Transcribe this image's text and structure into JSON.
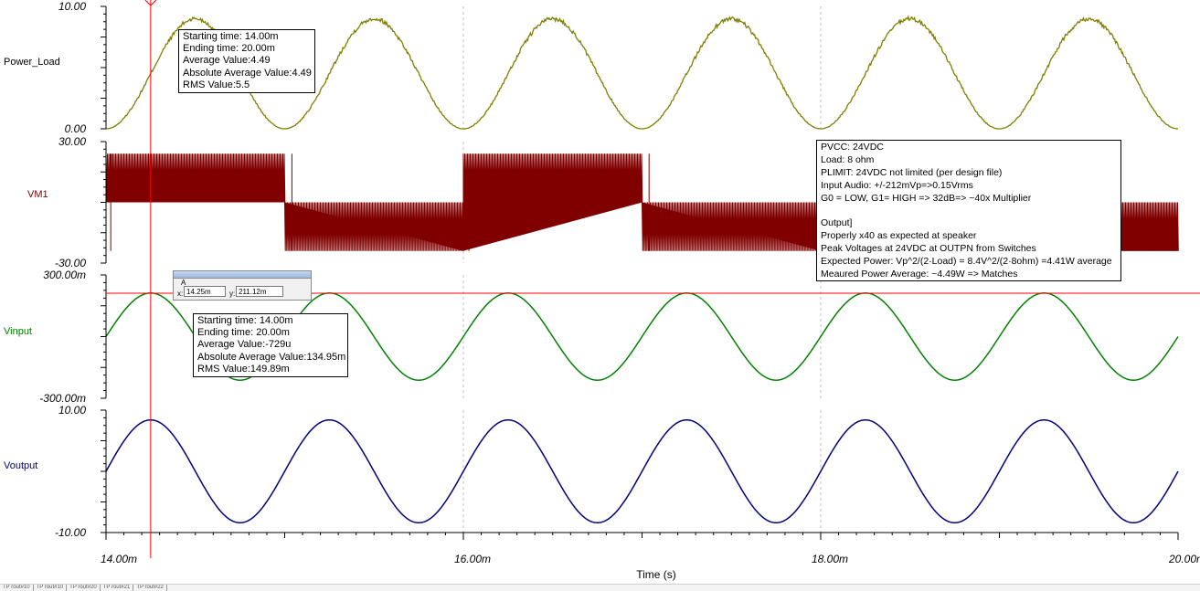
{
  "colors": {
    "power": "#7f7f00",
    "vm1": "#800000",
    "vinput": "#008000",
    "voutput": "#000080",
    "cursor": "#ff0000",
    "grid": "#c0c0c0"
  },
  "chart_data": {
    "type": "line",
    "xlabel": "Time (s)",
    "x_range": [
      0.014,
      0.02
    ],
    "x_ticks": [
      "14.00m",
      "16.00m",
      "18.00m",
      "20.00m"
    ],
    "cursor_x": 0.01425,
    "panels": [
      {
        "name": "Power_Load",
        "ylim": [
          0,
          10
        ],
        "y_ticks": [
          "10.00",
          "0.00"
        ],
        "waveform": "sin_squared",
        "amplitude": 9.0,
        "frequency_hz": 500,
        "phase_origin": 0.014,
        "noisy": true
      },
      {
        "name": "VM1",
        "ylim": [
          -30,
          30
        ],
        "y_ticks": [
          "30.00",
          "-30.00"
        ],
        "waveform": "pwm_square",
        "high": 24,
        "low": -24,
        "mid_high": 0,
        "mid_low": 0,
        "frequency_hz": 500
      },
      {
        "name": "Vinput",
        "ylim": [
          -0.3,
          0.3
        ],
        "y_ticks": [
          "300.00m",
          "-300.00m"
        ],
        "waveform": "sine",
        "amplitude": 0.212,
        "frequency_hz": 1000,
        "phase_origin": 0.014,
        "cursor_y": 0.21112
      },
      {
        "name": "Voutput",
        "ylim": [
          -10,
          10
        ],
        "y_ticks": [
          "10.00",
          "-10.00"
        ],
        "waveform": "sine",
        "amplitude": 8.4,
        "frequency_hz": 1000,
        "phase_origin": 0.014
      }
    ]
  },
  "power_stats": {
    "line1": "Starting time: 14.00m",
    "line2": "Ending time: 20.00m",
    "line3": "Average Value:4.49",
    "line4": "Absolute Average Value:4.49",
    "line5": "RMS Value:5.5"
  },
  "vinput_stats": {
    "line1": "Starting time: 14.00m",
    "line2": "Ending time: 20.00m",
    "line3": "Average Value:-729u",
    "line4": "Absolute Average Value:134.95m",
    "line5": "RMS Value:149.89m"
  },
  "notes": {
    "line1": "PVCC: 24VDC",
    "line2": "Load: 8 ohm",
    "line3": "PLIMIT: 24VDC not limited (per design file)",
    "line4": "Input Audio: +/-212mVp=>0.15Vrms",
    "line5": "G0 = LOW, G1= HIGH => 32dB=> ~40x Multiplier",
    "line6": "",
    "line7": "Output]",
    "line8": "Properly x40 as expected at speaker",
    "line9": "Peak Voltages at 24VDC at OUTPN from Switches",
    "line10": "Expected Power: Vp^2/(2·Load) = 8.4V^2/(2·8ohm) =4.41W average",
    "line11": "Meaured Power Average: ~4.49W => Matches"
  },
  "cursor_readout": {
    "name": "A",
    "x_label": "x:",
    "x_value": "14.25m",
    "y_label": "y:",
    "y_value": "211.12m"
  },
  "bottom_tabs": [
    "TP rout#10",
    "TP rout#10",
    "TP rout#20",
    "TP rout#21",
    "TP rout#22"
  ]
}
